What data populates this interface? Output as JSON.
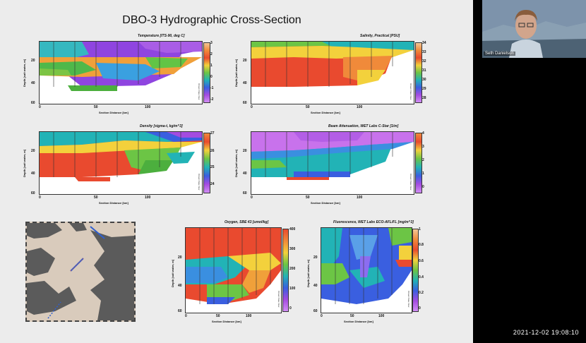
{
  "slide": {
    "title": "DBO-3 Hydrographic Cross-Section",
    "note": "Ocean Data View",
    "ylabel": "Depth [salt water, m]",
    "xlabel": "Section Distance [km]",
    "x_ticks": [
      "0",
      "50",
      "100"
    ],
    "y_ticks": [
      "20",
      "40",
      "60"
    ]
  },
  "panels": [
    {
      "title": "Temperature [ITS-90, deg C]",
      "cbar_ticks": [
        "3",
        "2",
        "1",
        "0",
        "-1",
        "-2"
      ],
      "gradient": "linear-gradient(to bottom,#f3c796,#f08a3a,#e94a2f,#f3d13c,#6cc545,#22b3b6,#3a5fe0,#a44ce0,#d28ef5)"
    },
    {
      "title": "Salinity, Practical [PSU]",
      "cbar_ticks": [
        "34",
        "33",
        "32",
        "31",
        "30",
        "29",
        "28"
      ],
      "gradient": "linear-gradient(to bottom,#f3c796,#f08a3a,#e94a2f,#f3d13c,#6cc545,#22b3b6,#3a5fe0,#a44ce0,#d28ef5)"
    },
    {
      "title": "Density [sigma-t, kg/m^3]",
      "cbar_ticks": [
        "27",
        "26",
        "25",
        "24"
      ],
      "gradient": "linear-gradient(to bottom,#f08a3a,#e94a2f,#f3d13c,#6cc545,#22b3b6,#3a5fe0,#a44ce0,#d28ef5)"
    },
    {
      "title": "Beam Attenuation, WET Labs C-Star [1/m]",
      "cbar_ticks": [
        "4",
        "3",
        "2",
        "1",
        "0"
      ],
      "gradient": "linear-gradient(to bottom,#f08a3a,#e94a2f,#f3d13c,#6cc545,#22b3b6,#3a5fe0,#a44ce0,#d28ef5)"
    },
    {
      "title": "Oxygen, SBE 43 [umol/kg]",
      "cbar_ticks": [
        "400",
        "300",
        "200",
        "100",
        "0"
      ],
      "gradient": "linear-gradient(to bottom,#e94a2f,#f08a3a,#f3d13c,#6cc545,#22b3b6,#3a5fe0,#a44ce0,#d28ef5)"
    },
    {
      "title": "Fluorescence, WET Labs ECO-AFL/FL [mg/m^3]",
      "cbar_ticks": [
        "1",
        "0.8",
        "0.6",
        "0.4",
        "0.2",
        "0"
      ],
      "gradient": "linear-gradient(to bottom,#f3c796,#f08a3a,#e94a2f,#f3d13c,#6cc545,#22b3b6,#3a5fe0,#a44ce0,#d28ef5)"
    }
  ],
  "video": {
    "participant_name": "Seth Danielson"
  },
  "timestamp": "2021-12-02 19:08:10"
}
